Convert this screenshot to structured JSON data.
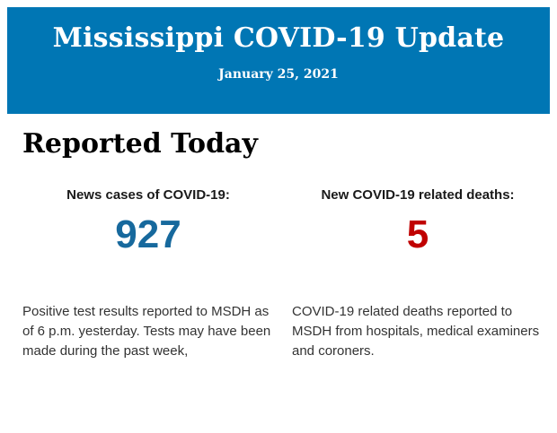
{
  "header": {
    "title": "Mississippi COVID-19 Update",
    "date": "January 25, 2021",
    "background_color": "#0076b4",
    "text_color": "#ffffff"
  },
  "section": {
    "heading": "Reported Today"
  },
  "stats": [
    {
      "label": "News cases of COVID-19:",
      "value": "927",
      "value_color": "#17699d",
      "description": "Positive test results reported to MSDH as of 6 p.m. yesterday. Tests may have been made during the past week,"
    },
    {
      "label": "New COVID-19 related deaths:",
      "value": "5",
      "value_color": "#c00000",
      "description": "COVID-19 related deaths reported to MSDH from hospitals, medical examiners and coroners."
    }
  ]
}
